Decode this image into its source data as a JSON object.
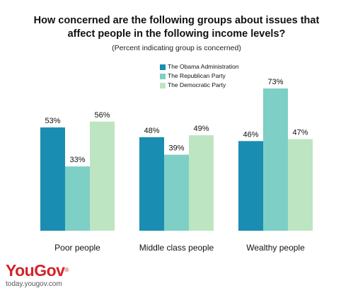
{
  "colors": {
    "series": [
      "#1a8db3",
      "#7ecfc6",
      "#bde5c1"
    ],
    "brand": "#d2232a"
  },
  "brand": {
    "logo_text": "YouGov",
    "source_url": "today.yougov.com"
  },
  "chart_data": {
    "type": "bar",
    "title_lines": [
      "How concerned are the following groups about issues that",
      "affect people in the following income levels?"
    ],
    "subtitle": "(Percent indicating group is concerned)",
    "categories": [
      "Poor people",
      "Middle class people",
      "Wealthy people"
    ],
    "series": [
      {
        "name": "The Obama Administration",
        "values": [
          53,
          48,
          46
        ],
        "labels": [
          "53%",
          "48%",
          "46%"
        ]
      },
      {
        "name": "The Republican Party",
        "values": [
          33,
          39,
          73
        ],
        "labels": [
          "33%",
          "39%",
          "73%"
        ]
      },
      {
        "name": "The Democratic Party",
        "values": [
          56,
          49,
          47
        ],
        "labels": [
          "56%",
          "49%",
          "47%"
        ]
      }
    ],
    "ylim": [
      0,
      73
    ],
    "grid": false,
    "legend_position": "top-center"
  }
}
